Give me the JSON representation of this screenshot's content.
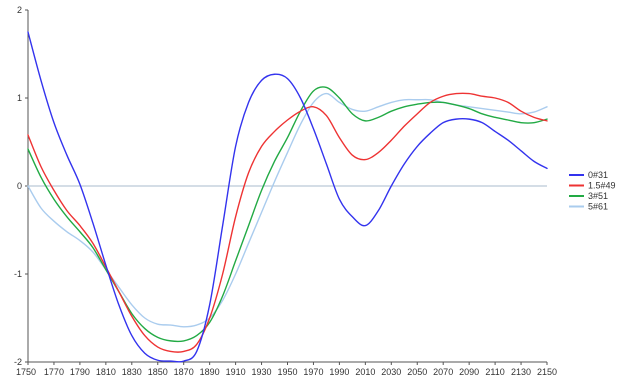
{
  "chart_data": {
    "type": "line",
    "title": "",
    "xlabel": "",
    "ylabel": "",
    "xlim": [
      1750,
      2150
    ],
    "ylim": [
      -2,
      2
    ],
    "x_ticks": [
      1750,
      1770,
      1790,
      1810,
      1830,
      1850,
      1870,
      1890,
      1910,
      1930,
      1950,
      1970,
      1990,
      2010,
      2030,
      2050,
      2070,
      2090,
      2110,
      2130,
      2150
    ],
    "y_ticks": [
      -2,
      -1,
      0,
      1,
      2
    ],
    "zero_line": true,
    "grid": false,
    "legend_position": "right",
    "series": [
      {
        "name": "0#31",
        "color": "#3333ee",
        "x": [
          1750,
          1760,
          1770,
          1780,
          1790,
          1800,
          1810,
          1820,
          1830,
          1840,
          1850,
          1860,
          1870,
          1880,
          1890,
          1900,
          1910,
          1920,
          1930,
          1940,
          1950,
          1960,
          1970,
          1980,
          1990,
          2000,
          2010,
          2020,
          2030,
          2040,
          2050,
          2060,
          2070,
          2080,
          2090,
          2100,
          2110,
          2120,
          2130,
          2140,
          2150
        ],
        "y": [
          1.75,
          1.2,
          0.72,
          0.35,
          0.02,
          -0.42,
          -0.9,
          -1.35,
          -1.7,
          -1.9,
          -1.98,
          -1.99,
          -1.99,
          -1.88,
          -1.35,
          -0.45,
          0.45,
          0.95,
          1.2,
          1.27,
          1.22,
          1.0,
          0.65,
          0.25,
          -0.15,
          -0.35,
          -0.45,
          -0.28,
          0.0,
          0.25,
          0.45,
          0.6,
          0.72,
          0.76,
          0.76,
          0.72,
          0.62,
          0.52,
          0.4,
          0.28,
          0.2
        ]
      },
      {
        "name": "1.5#49",
        "color": "#ee3333",
        "x": [
          1750,
          1760,
          1770,
          1780,
          1790,
          1800,
          1810,
          1820,
          1830,
          1840,
          1850,
          1860,
          1870,
          1880,
          1890,
          1900,
          1910,
          1920,
          1930,
          1940,
          1950,
          1960,
          1970,
          1980,
          1990,
          2000,
          2010,
          2020,
          2030,
          2040,
          2050,
          2060,
          2070,
          2080,
          2090,
          2100,
          2110,
          2120,
          2130,
          2140,
          2150
        ],
        "y": [
          0.58,
          0.22,
          -0.05,
          -0.28,
          -0.45,
          -0.65,
          -0.92,
          -1.2,
          -1.48,
          -1.7,
          -1.83,
          -1.88,
          -1.88,
          -1.8,
          -1.5,
          -1.0,
          -0.35,
          0.15,
          0.45,
          0.62,
          0.75,
          0.85,
          0.9,
          0.8,
          0.55,
          0.35,
          0.3,
          0.38,
          0.52,
          0.68,
          0.82,
          0.95,
          1.02,
          1.05,
          1.05,
          1.02,
          1.0,
          0.95,
          0.85,
          0.78,
          0.74
        ]
      },
      {
        "name": "3#51",
        "color": "#22aa44",
        "x": [
          1750,
          1760,
          1770,
          1780,
          1790,
          1800,
          1810,
          1820,
          1830,
          1840,
          1850,
          1860,
          1870,
          1880,
          1890,
          1900,
          1910,
          1920,
          1930,
          1940,
          1950,
          1960,
          1970,
          1980,
          1990,
          2000,
          2010,
          2020,
          2030,
          2040,
          2050,
          2060,
          2070,
          2080,
          2090,
          2100,
          2110,
          2120,
          2130,
          2140,
          2150
        ],
        "y": [
          0.42,
          0.1,
          -0.15,
          -0.35,
          -0.52,
          -0.7,
          -0.95,
          -1.2,
          -1.45,
          -1.62,
          -1.72,
          -1.76,
          -1.76,
          -1.7,
          -1.55,
          -1.25,
          -0.85,
          -0.45,
          -0.05,
          0.28,
          0.55,
          0.85,
          1.08,
          1.12,
          1.0,
          0.82,
          0.74,
          0.78,
          0.85,
          0.9,
          0.93,
          0.95,
          0.95,
          0.92,
          0.88,
          0.82,
          0.78,
          0.75,
          0.72,
          0.72,
          0.76
        ]
      },
      {
        "name": "5#61",
        "color": "#aaccee",
        "x": [
          1750,
          1760,
          1770,
          1780,
          1790,
          1800,
          1810,
          1820,
          1830,
          1840,
          1850,
          1860,
          1870,
          1880,
          1890,
          1900,
          1910,
          1920,
          1930,
          1940,
          1950,
          1960,
          1970,
          1980,
          1990,
          2000,
          2010,
          2020,
          2030,
          2040,
          2050,
          2060,
          2070,
          2080,
          2090,
          2100,
          2110,
          2120,
          2130,
          2140,
          2150
        ],
        "y": [
          0.0,
          -0.25,
          -0.4,
          -0.52,
          -0.62,
          -0.75,
          -0.95,
          -1.15,
          -1.35,
          -1.5,
          -1.57,
          -1.58,
          -1.6,
          -1.58,
          -1.5,
          -1.3,
          -1.0,
          -0.65,
          -0.3,
          0.05,
          0.38,
          0.7,
          0.95,
          1.05,
          0.95,
          0.87,
          0.85,
          0.9,
          0.95,
          0.98,
          0.98,
          0.98,
          0.95,
          0.92,
          0.9,
          0.88,
          0.86,
          0.84,
          0.82,
          0.84,
          0.9
        ]
      }
    ]
  }
}
